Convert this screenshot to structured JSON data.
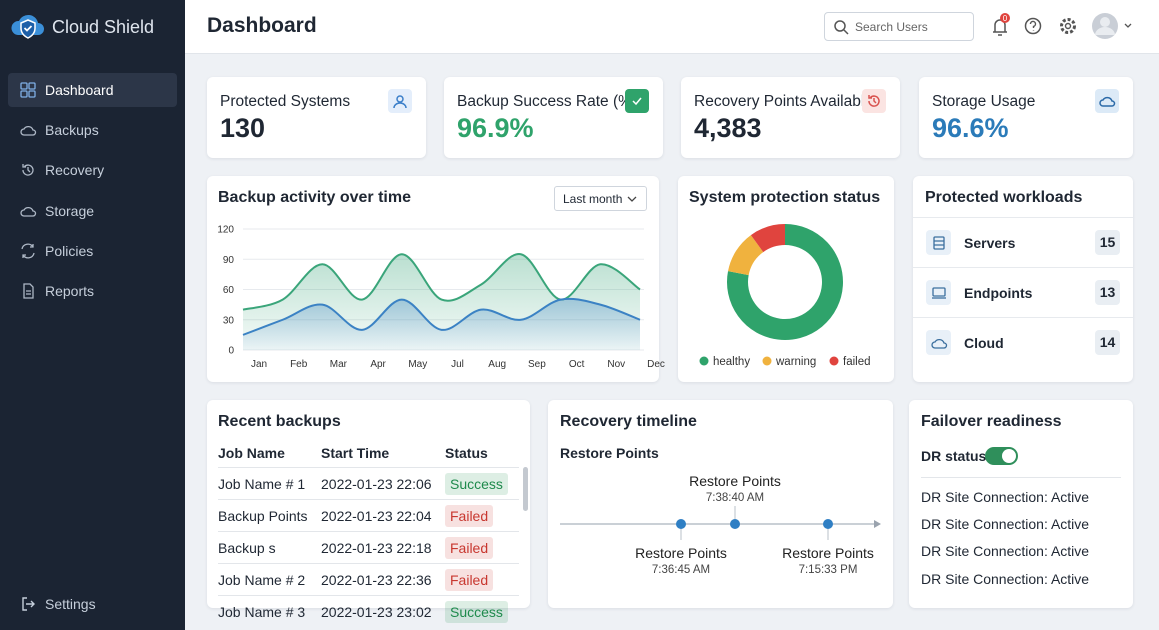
{
  "sidebar": {
    "brand": "Cloud Shield",
    "nav": [
      "Dashboard",
      "Backups",
      "Recovery",
      "Storage",
      "Policies",
      "Reports"
    ],
    "settings": "Settings"
  },
  "header": {
    "title": "Dashboard",
    "search_placeholder": "Search Users",
    "notification_count": "0"
  },
  "kpis": [
    {
      "label": "Protected Systems",
      "value": "130",
      "color": "#1f2733"
    },
    {
      "label": "Backup Success Rate (%)",
      "value": "96.9%",
      "color": "#2fa36b"
    },
    {
      "label": "Recovery Points Available",
      "value": "4,383",
      "color": "#1f2733"
    },
    {
      "label": "Storage Usage",
      "value": "96.6%",
      "color": "#2b7bb9"
    }
  ],
  "activity_range": "Last month",
  "chart_data": [
    {
      "type": "area",
      "title": "Backup activity over time",
      "categories": [
        "Jan",
        "Feb",
        "Mar",
        "Apr",
        "May",
        "Jul",
        "Aug",
        "Sep",
        "Oct",
        "Nov",
        "Dec"
      ],
      "series": [
        {
          "color": "#3aa57a",
          "values": [
            40,
            50,
            85,
            50,
            95,
            50,
            65,
            95,
            50,
            85,
            60
          ]
        },
        {
          "color": "#3b82c4",
          "values": [
            15,
            30,
            45,
            20,
            50,
            20,
            40,
            30,
            50,
            45,
            30
          ]
        }
      ],
      "ylim": [
        0,
        120
      ],
      "yticks": [
        0,
        30,
        60,
        90,
        120
      ],
      "grid": true
    },
    {
      "type": "donut",
      "title": "System protection status",
      "categories": [
        "healthy",
        "warning",
        "failed"
      ],
      "values": [
        78,
        12,
        10
      ],
      "colors": [
        "#2fa36b",
        "#f0b23e",
        "#e0443e"
      ]
    }
  ],
  "workloads": {
    "title": "Protected workloads",
    "items": [
      {
        "label": "Servers",
        "count": "15"
      },
      {
        "label": "Endpoints",
        "count": "13"
      },
      {
        "label": "Cloud",
        "count": "14"
      }
    ]
  },
  "recent_backups": {
    "title": "Recent backups",
    "columns": [
      "Job Name",
      "Start Time",
      "Status"
    ],
    "rows": [
      {
        "job": "Job Name # 1",
        "start": "2022-01-23 22:06",
        "status": "Success",
        "status_color": "#1e8a4c"
      },
      {
        "job": "Backup Points",
        "start": "2022-01-23 22:04",
        "status": "Failed",
        "status_color": "#c8372f"
      },
      {
        "job": "Backup s",
        "start": "2022-01-23 22:18",
        "status": "Failed",
        "status_color": "#c8372f"
      },
      {
        "job": "Job Name # 2",
        "start": "2022-01-23 22:36",
        "status": "Failed",
        "status_color": "#c8372f"
      },
      {
        "job": "Job Name # 3",
        "start": "2022-01-23 23:02",
        "status": "Success",
        "status_color": "#1e8a4c"
      }
    ]
  },
  "recovery_timeline": {
    "title": "Recovery timeline",
    "subtitle": "Restore Points",
    "points": [
      {
        "label": "Restore Points",
        "time": "7:36:45 AM"
      },
      {
        "label": "Restore Points",
        "time": "7:38:40 AM"
      },
      {
        "label": "Restore Points",
        "time": "7:15:33 PM"
      }
    ]
  },
  "failover": {
    "title": "Failover readiness",
    "dr_status": "DR status",
    "connections": [
      "DR Site Connection: Active",
      "DR Site Connection: Active",
      "DR Site Connection: Active",
      "DR Site Connection: Active"
    ]
  }
}
